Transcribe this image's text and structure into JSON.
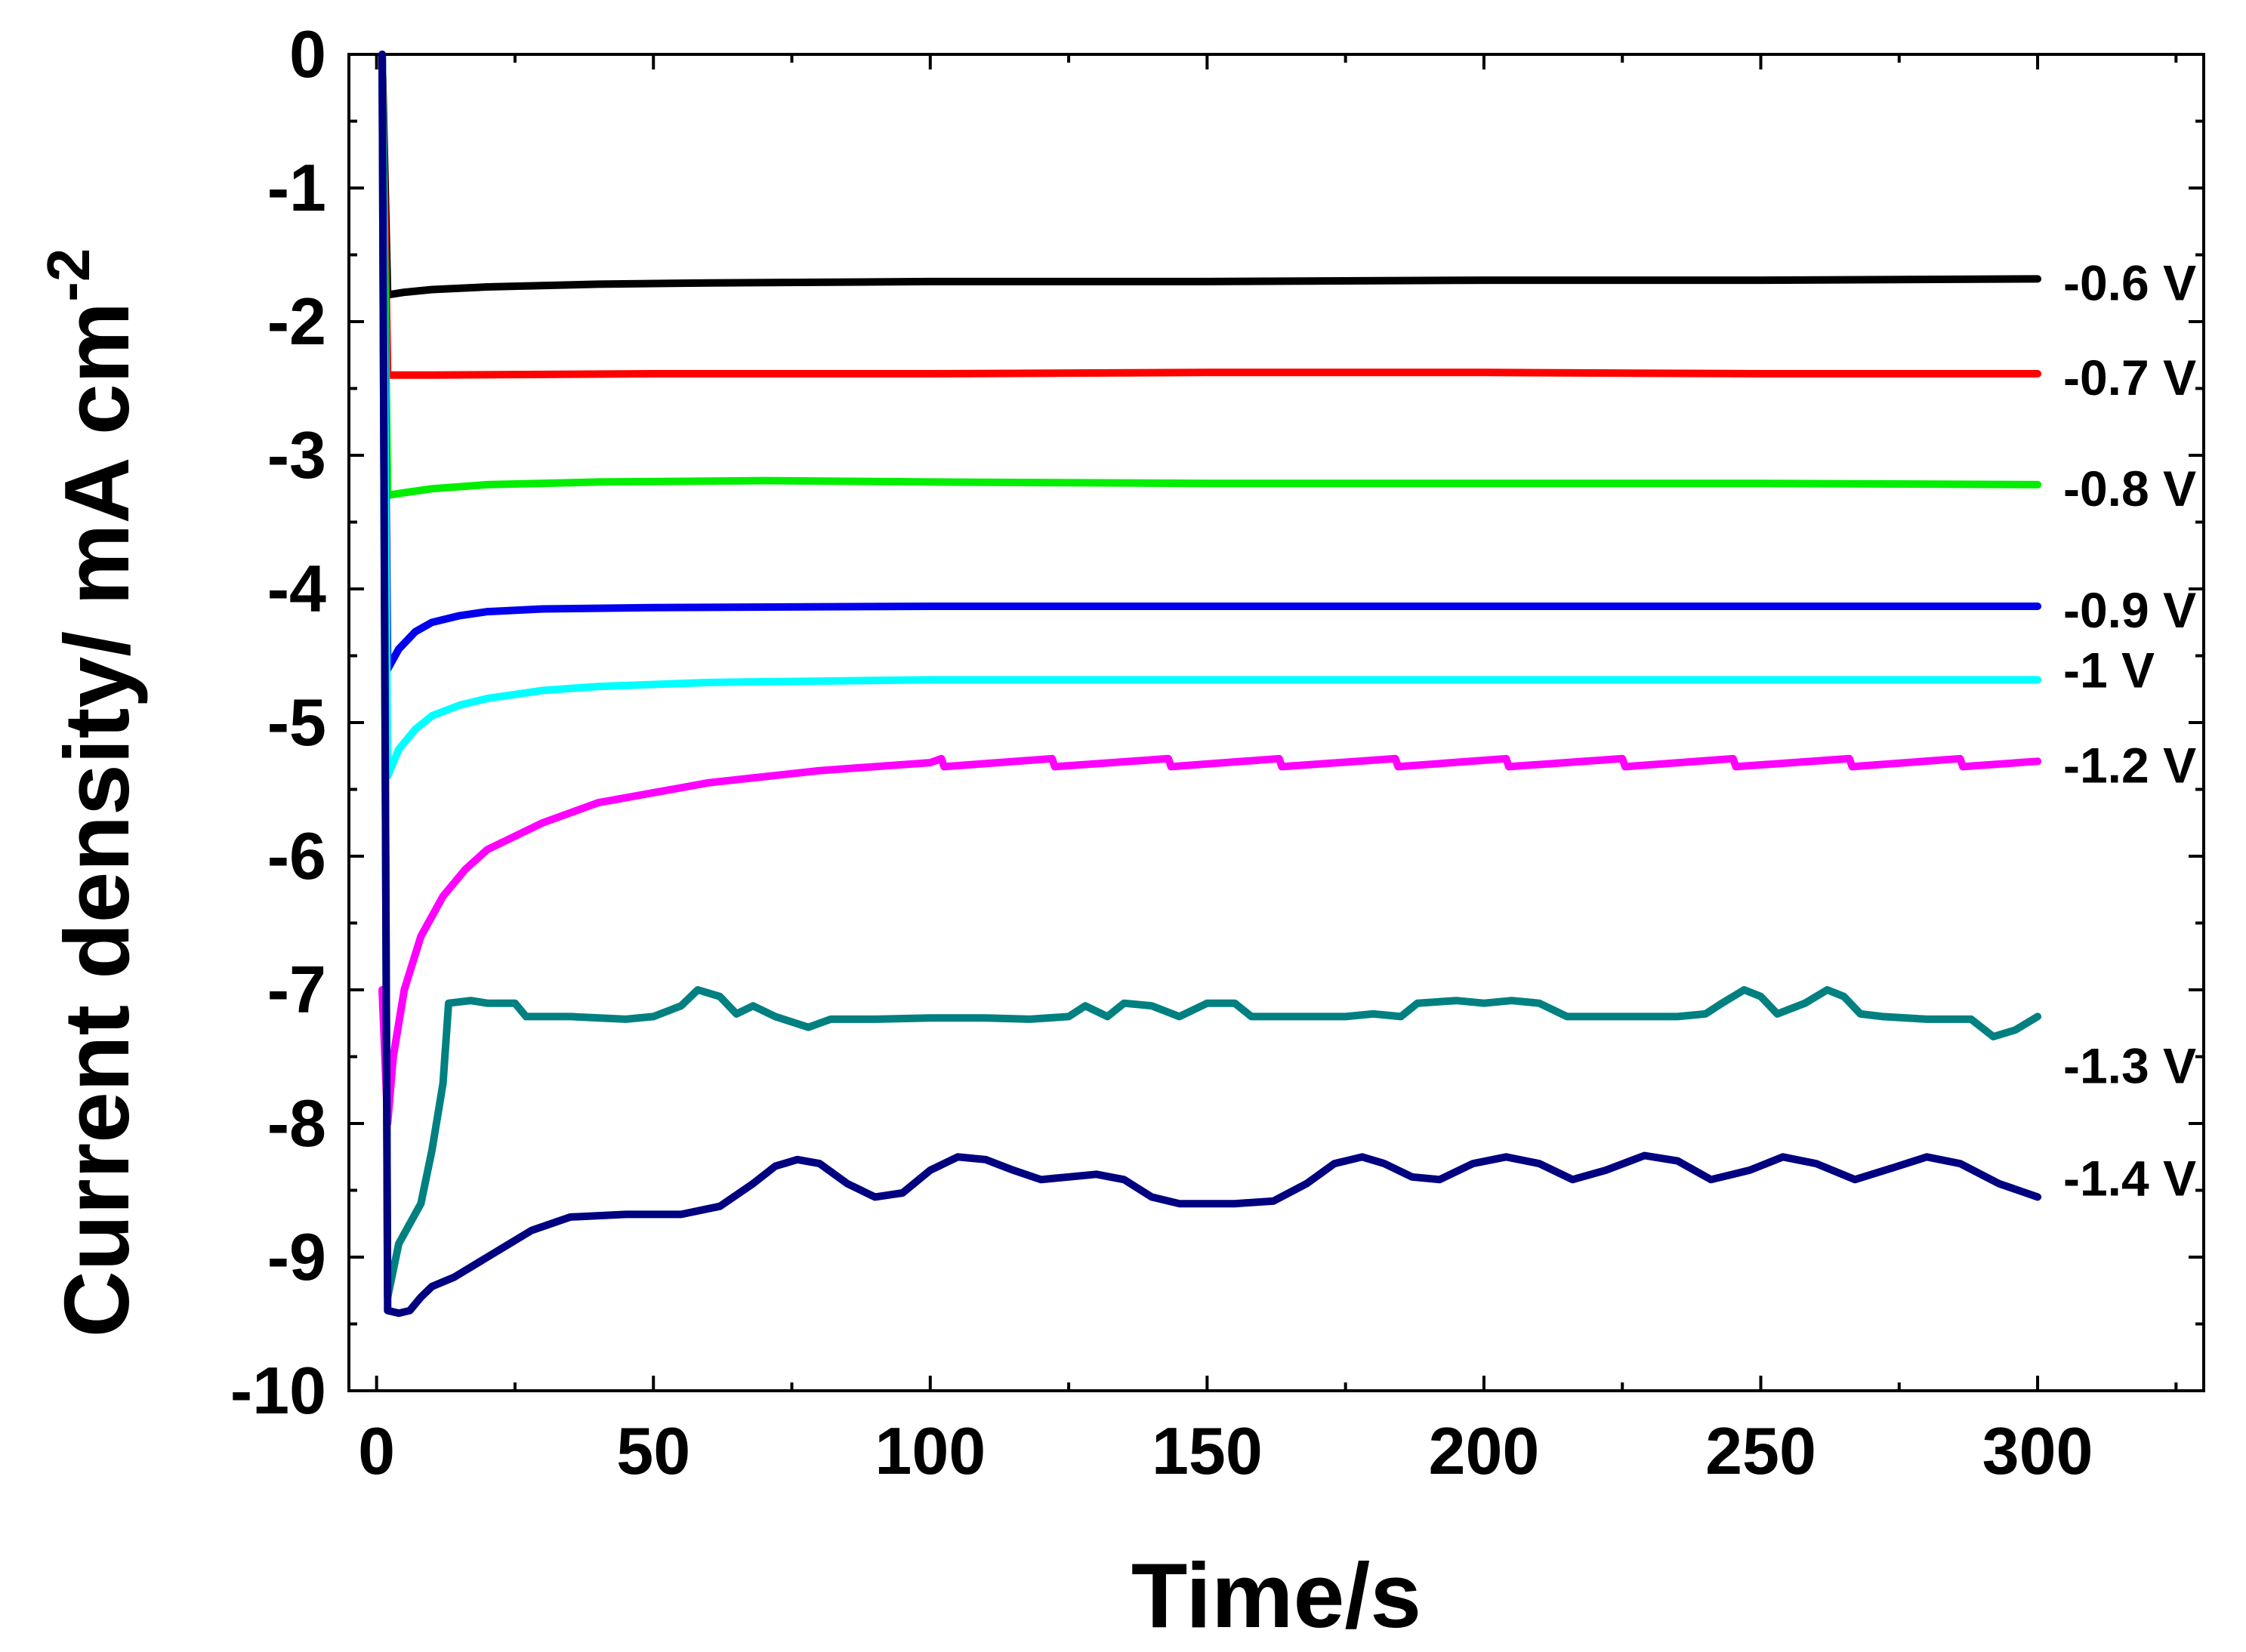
{
  "chart_data": {
    "type": "line",
    "title": "",
    "xlabel": "Time/s",
    "ylabel": "Current density/ mA cm",
    "ylabel_superscript": "-2",
    "xlim": [
      -5,
      330
    ],
    "ylim": [
      -10,
      0
    ],
    "x_ticks": [
      0,
      50,
      100,
      150,
      200,
      250,
      300
    ],
    "y_ticks": [
      0,
      -1,
      -2,
      -3,
      -4,
      -5,
      -6,
      -7,
      -8,
      -9,
      -10
    ],
    "x_tick_labels": [
      "0",
      "50",
      "100",
      "150",
      "200",
      "250",
      "300"
    ],
    "y_tick_labels": [
      "0",
      "-1",
      "-2",
      "-3",
      "-4",
      "-5",
      "-6",
      "-7",
      "-8",
      "-9",
      "-10"
    ],
    "grid": false,
    "legend": "inline-right",
    "series": [
      {
        "name": "-0.6 V",
        "color": "#000000",
        "points": [
          [
            1,
            0
          ],
          [
            2,
            -1.8
          ],
          [
            5,
            -1.78
          ],
          [
            10,
            -1.76
          ],
          [
            20,
            -1.74
          ],
          [
            40,
            -1.72
          ],
          [
            60,
            -1.71
          ],
          [
            100,
            -1.7
          ],
          [
            150,
            -1.7
          ],
          [
            200,
            -1.69
          ],
          [
            250,
            -1.69
          ],
          [
            300,
            -1.68
          ]
        ]
      },
      {
        "name": "-0.7 V",
        "color": "#ff0000",
        "points": [
          [
            1,
            0
          ],
          [
            2,
            -2.4
          ],
          [
            10,
            -2.4
          ],
          [
            50,
            -2.39
          ],
          [
            100,
            -2.39
          ],
          [
            150,
            -2.38
          ],
          [
            200,
            -2.38
          ],
          [
            250,
            -2.39
          ],
          [
            300,
            -2.39
          ]
        ]
      },
      {
        "name": "-0.8 V",
        "color": "#00ee00",
        "points": [
          [
            1,
            0
          ],
          [
            2,
            -3.3
          ],
          [
            5,
            -3.28
          ],
          [
            10,
            -3.25
          ],
          [
            20,
            -3.22
          ],
          [
            40,
            -3.2
          ],
          [
            70,
            -3.19
          ],
          [
            100,
            -3.2
          ],
          [
            150,
            -3.21
          ],
          [
            200,
            -3.21
          ],
          [
            250,
            -3.21
          ],
          [
            300,
            -3.22
          ]
        ]
      },
      {
        "name": "-0.9 V",
        "color": "#0000ee",
        "points": [
          [
            1,
            0
          ],
          [
            2,
            -4.6
          ],
          [
            4,
            -4.45
          ],
          [
            7,
            -4.32
          ],
          [
            10,
            -4.25
          ],
          [
            15,
            -4.2
          ],
          [
            20,
            -4.17
          ],
          [
            30,
            -4.15
          ],
          [
            50,
            -4.14
          ],
          [
            100,
            -4.13
          ],
          [
            150,
            -4.13
          ],
          [
            200,
            -4.13
          ],
          [
            250,
            -4.13
          ],
          [
            300,
            -4.13
          ]
        ]
      },
      {
        "name": "-1 V",
        "color": "#00ffff",
        "points": [
          [
            1,
            0
          ],
          [
            2,
            -5.4
          ],
          [
            4,
            -5.2
          ],
          [
            7,
            -5.05
          ],
          [
            10,
            -4.95
          ],
          [
            15,
            -4.87
          ],
          [
            20,
            -4.82
          ],
          [
            30,
            -4.76
          ],
          [
            40,
            -4.73
          ],
          [
            60,
            -4.7
          ],
          [
            80,
            -4.69
          ],
          [
            100,
            -4.68
          ],
          [
            150,
            -4.68
          ],
          [
            200,
            -4.68
          ],
          [
            250,
            -4.68
          ],
          [
            300,
            -4.68
          ]
        ]
      },
      {
        "name": "-1.2 V",
        "color": "#ff00ff",
        "points": [
          [
            1,
            -7
          ],
          [
            2,
            -8.0
          ],
          [
            3,
            -7.5
          ],
          [
            5,
            -7.0
          ],
          [
            8,
            -6.6
          ],
          [
            12,
            -6.3
          ],
          [
            16,
            -6.1
          ],
          [
            20,
            -5.95
          ],
          [
            30,
            -5.75
          ],
          [
            40,
            -5.6
          ],
          [
            60,
            -5.45
          ],
          [
            80,
            -5.36
          ],
          [
            100,
            -5.3
          ],
          [
            102,
            -5.27
          ],
          [
            102.5,
            -5.33
          ],
          [
            122,
            -5.27
          ],
          [
            122.5,
            -5.33
          ],
          [
            143,
            -5.27
          ],
          [
            143.5,
            -5.33
          ],
          [
            163,
            -5.27
          ],
          [
            163.5,
            -5.33
          ],
          [
            184,
            -5.27
          ],
          [
            184.5,
            -5.33
          ],
          [
            204,
            -5.27
          ],
          [
            204.5,
            -5.33
          ],
          [
            225,
            -5.27
          ],
          [
            225.5,
            -5.33
          ],
          [
            245,
            -5.27
          ],
          [
            245.5,
            -5.33
          ],
          [
            266,
            -5.27
          ],
          [
            266.5,
            -5.33
          ],
          [
            286,
            -5.27
          ],
          [
            286.5,
            -5.33
          ],
          [
            300,
            -5.29
          ]
        ]
      },
      {
        "name": "-1.3 V",
        "color": "#008080",
        "points": [
          [
            1,
            0
          ],
          [
            2,
            -9.3
          ],
          [
            4,
            -8.9
          ],
          [
            6,
            -8.75
          ],
          [
            8,
            -8.6
          ],
          [
            10,
            -8.2
          ],
          [
            12,
            -7.7
          ],
          [
            13,
            -7.1
          ],
          [
            17,
            -7.08
          ],
          [
            20,
            -7.1
          ],
          [
            25,
            -7.1
          ],
          [
            27,
            -7.2
          ],
          [
            35,
            -7.2
          ],
          [
            45,
            -7.22
          ],
          [
            50,
            -7.2
          ],
          [
            55,
            -7.12
          ],
          [
            58,
            -7.0
          ],
          [
            62,
            -7.05
          ],
          [
            65,
            -7.18
          ],
          [
            68,
            -7.12
          ],
          [
            72,
            -7.2
          ],
          [
            78,
            -7.28
          ],
          [
            82,
            -7.22
          ],
          [
            90,
            -7.22
          ],
          [
            100,
            -7.21
          ],
          [
            110,
            -7.21
          ],
          [
            118,
            -7.22
          ],
          [
            125,
            -7.2
          ],
          [
            128,
            -7.12
          ],
          [
            132,
            -7.2
          ],
          [
            135,
            -7.1
          ],
          [
            140,
            -7.12
          ],
          [
            145,
            -7.2
          ],
          [
            150,
            -7.1
          ],
          [
            155,
            -7.1
          ],
          [
            158,
            -7.2
          ],
          [
            165,
            -7.2
          ],
          [
            175,
            -7.2
          ],
          [
            180,
            -7.18
          ],
          [
            185,
            -7.2
          ],
          [
            188,
            -7.1
          ],
          [
            195,
            -7.08
          ],
          [
            200,
            -7.1
          ],
          [
            205,
            -7.08
          ],
          [
            210,
            -7.1
          ],
          [
            215,
            -7.2
          ],
          [
            225,
            -7.2
          ],
          [
            235,
            -7.2
          ],
          [
            240,
            -7.18
          ],
          [
            243,
            -7.1
          ],
          [
            247,
            -7.0
          ],
          [
            250,
            -7.05
          ],
          [
            253,
            -7.18
          ],
          [
            258,
            -7.1
          ],
          [
            262,
            -7.0
          ],
          [
            265,
            -7.05
          ],
          [
            268,
            -7.18
          ],
          [
            272,
            -7.2
          ],
          [
            280,
            -7.22
          ],
          [
            288,
            -7.22
          ],
          [
            292,
            -7.35
          ],
          [
            296,
            -7.3
          ],
          [
            300,
            -7.2
          ]
        ]
      },
      {
        "name": "-1.4 V",
        "color": "#000080",
        "points": [
          [
            1,
            0
          ],
          [
            2,
            -9.4
          ],
          [
            4,
            -9.42
          ],
          [
            6,
            -9.4
          ],
          [
            8,
            -9.3
          ],
          [
            10,
            -9.22
          ],
          [
            14,
            -9.15
          ],
          [
            20,
            -9.0
          ],
          [
            28,
            -8.8
          ],
          [
            35,
            -8.7
          ],
          [
            45,
            -8.68
          ],
          [
            55,
            -8.68
          ],
          [
            62,
            -8.62
          ],
          [
            68,
            -8.45
          ],
          [
            72,
            -8.32
          ],
          [
            76,
            -8.27
          ],
          [
            80,
            -8.3
          ],
          [
            85,
            -8.45
          ],
          [
            90,
            -8.55
          ],
          [
            95,
            -8.52
          ],
          [
            100,
            -8.35
          ],
          [
            105,
            -8.25
          ],
          [
            110,
            -8.27
          ],
          [
            115,
            -8.35
          ],
          [
            120,
            -8.42
          ],
          [
            125,
            -8.4
          ],
          [
            130,
            -8.38
          ],
          [
            135,
            -8.42
          ],
          [
            140,
            -8.55
          ],
          [
            145,
            -8.6
          ],
          [
            155,
            -8.6
          ],
          [
            162,
            -8.58
          ],
          [
            168,
            -8.45
          ],
          [
            173,
            -8.3
          ],
          [
            178,
            -8.25
          ],
          [
            182,
            -8.3
          ],
          [
            187,
            -8.4
          ],
          [
            192,
            -8.42
          ],
          [
            198,
            -8.3
          ],
          [
            204,
            -8.25
          ],
          [
            210,
            -8.3
          ],
          [
            216,
            -8.42
          ],
          [
            222,
            -8.35
          ],
          [
            229,
            -8.24
          ],
          [
            235,
            -8.28
          ],
          [
            241,
            -8.42
          ],
          [
            248,
            -8.35
          ],
          [
            254,
            -8.25
          ],
          [
            260,
            -8.3
          ],
          [
            267,
            -8.42
          ],
          [
            274,
            -8.33
          ],
          [
            280,
            -8.25
          ],
          [
            286,
            -8.3
          ],
          [
            293,
            -8.45
          ],
          [
            300,
            -8.55
          ]
        ]
      }
    ]
  }
}
